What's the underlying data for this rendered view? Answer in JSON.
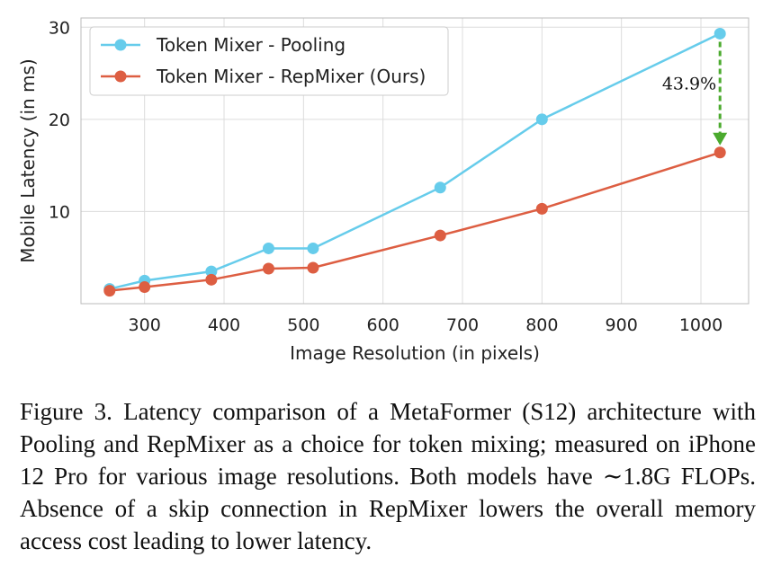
{
  "chart_data": {
    "type": "line",
    "title": "",
    "xlabel": "Image Resolution (in pixels)",
    "ylabel": "Mobile Latency (in ms)",
    "xlim": [
      220,
      1060
    ],
    "ylim": [
      0,
      31
    ],
    "xticks": [
      300,
      400,
      500,
      600,
      700,
      800,
      900,
      1000
    ],
    "yticks": [
      10,
      20,
      30
    ],
    "grid": true,
    "legend_position": "top-left",
    "series": [
      {
        "name": "Token Mixer - Pooling",
        "color": "#66CCEB",
        "x": [
          256,
          300,
          384,
          456,
          512,
          672,
          800,
          1024
        ],
        "y": [
          1.6,
          2.5,
          3.5,
          6.0,
          6.0,
          12.6,
          20.0,
          29.3
        ]
      },
      {
        "name": "Token Mixer - RepMixer (Ours)",
        "color": "#DD5E42",
        "x": [
          256,
          300,
          384,
          456,
          512,
          672,
          800,
          1024
        ],
        "y": [
          1.4,
          1.8,
          2.6,
          3.8,
          3.9,
          7.4,
          10.3,
          16.4
        ]
      }
    ],
    "annotation": {
      "text": "43.9%",
      "x": 1024,
      "y_from": 29.3,
      "y_to": 16.4,
      "color": "#4BAA2E"
    }
  },
  "caption": {
    "text": "Figure 3. Latency comparison of a MetaFormer (S12) architecture with Pooling and RepMixer as a choice for token mixing; measured on iPhone 12 Pro for various image resolutions. Both models have ∼1.8G FLOPs. Absence of a skip connection in RepMixer lowers the overall memory access cost leading to lower latency."
  }
}
